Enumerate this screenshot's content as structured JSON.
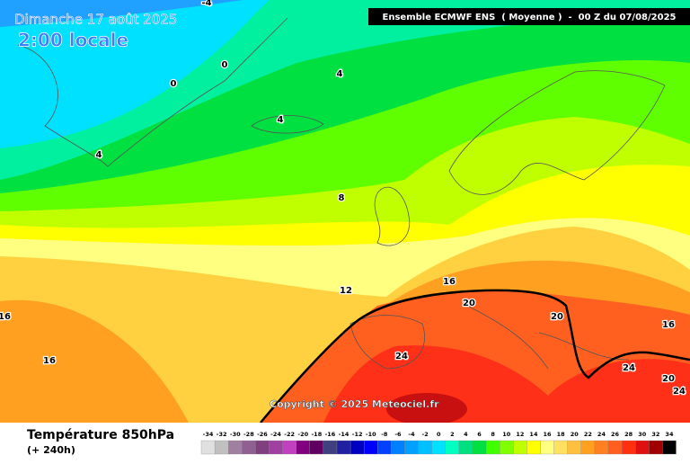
{
  "header": {
    "date": "Dimanche 17 août 2025",
    "time": "2:00 locale",
    "run": "Ensemble ECMWF ENS  ( Moyenne )  -  00 Z du 07/08/2025"
  },
  "map": {
    "contour_labels": [
      -4,
      0,
      0,
      4,
      4,
      4,
      8,
      12,
      16,
      16,
      16,
      20,
      20,
      16,
      24,
      24,
      20,
      24
    ],
    "copyright": "Copyright © 2025 Meteociel.fr"
  },
  "footer": {
    "title": "Température 850hPa",
    "lead": "(+ 240h)"
  },
  "legend": {
    "ticks": [
      -34,
      -32,
      -30,
      -28,
      -26,
      -24,
      -22,
      -20,
      -18,
      -16,
      -14,
      -12,
      -10,
      -8,
      -6,
      -4,
      -2,
      0,
      2,
      4,
      6,
      8,
      10,
      12,
      14,
      16,
      18,
      20,
      22,
      24,
      26,
      28,
      30,
      32,
      34
    ],
    "colors": [
      "#e0e0e0",
      "#c0c0c0",
      "#a080a0",
      "#906090",
      "#804080",
      "#a040a0",
      "#c040c0",
      "#800080",
      "#600060",
      "#404080",
      "#2020a0",
      "#0000c0",
      "#0000ff",
      "#0040ff",
      "#0080ff",
      "#00a0ff",
      "#00c0ff",
      "#00e0ff",
      "#00ffc0",
      "#00e080",
      "#00e040",
      "#40ff00",
      "#80ff00",
      "#c0ff00",
      "#ffff00",
      "#ffff80",
      "#ffe060",
      "#ffc040",
      "#ffa020",
      "#ff8020",
      "#ff6020",
      "#ff3010",
      "#e01010",
      "#a00000",
      "#000000"
    ]
  }
}
